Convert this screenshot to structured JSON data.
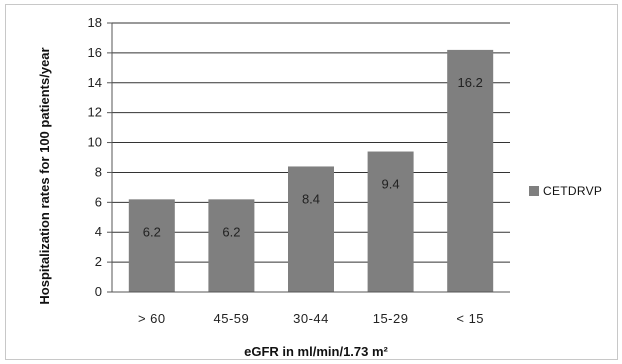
{
  "chart_data": {
    "type": "bar",
    "categories": [
      "> 60",
      "45-59",
      "30-44",
      "15-29",
      "< 15"
    ],
    "series": [
      {
        "name": "CETDRVP",
        "values": [
          6.2,
          6.2,
          8.4,
          9.4,
          16.2
        ],
        "color": "#7f7f7f"
      }
    ],
    "data_labels": [
      "6.2",
      "6.2",
      "8.4",
      "9.4",
      "16.2"
    ],
    "xlabel": "eGFR in ml/min/1.73 m²",
    "ylabel": "Hospitalization rates for 100 patients/year",
    "ylim": [
      0,
      18
    ],
    "yticks": [
      0,
      2,
      4,
      6,
      8,
      10,
      12,
      14,
      16,
      18
    ],
    "grid": true,
    "legend": "right"
  }
}
